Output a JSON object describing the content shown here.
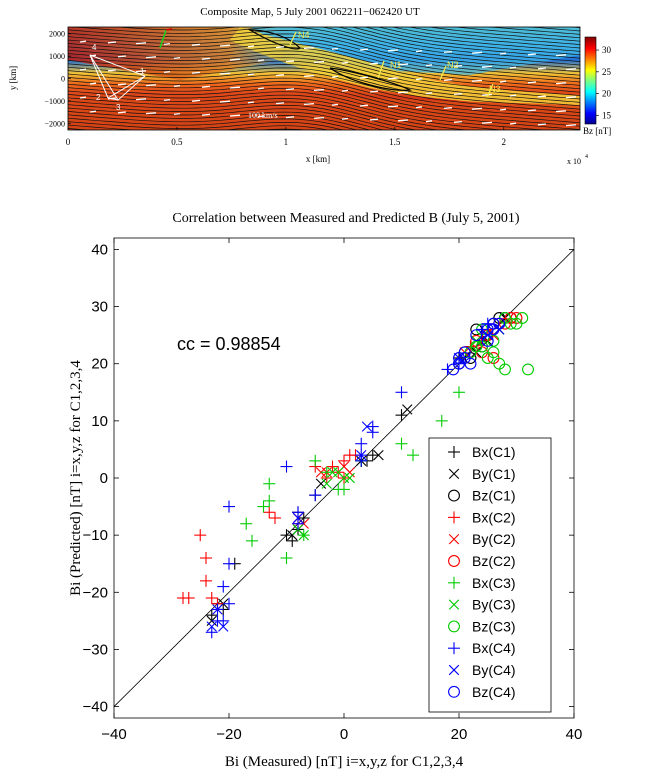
{
  "top_map": {
    "title": "Composite Map,  5 July 2001  062211−062420 UT",
    "ylabel": "y [km]",
    "xlabel": "x [km]",
    "x_exponent": "x 10",
    "x_exponent_power": "4",
    "x_ticks": [
      "0",
      "0.5",
      "1",
      "1.5",
      "2"
    ],
    "x_tick_values": [
      0,
      0.5,
      1,
      1.5,
      2
    ],
    "xlim": [
      0,
      2.35
    ],
    "y_ticks": [
      "2000",
      "1000",
      "0",
      "−1000",
      "−2000"
    ],
    "y_tick_values": [
      2000,
      1000,
      0,
      -1000,
      -2000
    ],
    "ylim": [
      -2300,
      2300
    ],
    "colorbar_label": "Bz  [nT]",
    "colorbar_ticks": [
      "30",
      "25",
      "20",
      "15"
    ],
    "colorbar_tick_values": [
      30,
      25,
      20,
      15
    ],
    "colorbar_range": [
      13,
      33
    ],
    "arrow_scale_label": "100 km/s",
    "labels": {
      "n1": "N1",
      "n2": "N2",
      "n3": "N3",
      "n4": "N4",
      "c1": "1",
      "c2": "2",
      "c3": "3",
      "c4": "4"
    },
    "colors": {
      "label": "#f2e94e",
      "arrows": "#ffffff",
      "green_arrow": "#22cc22",
      "red_arrow": "#cc0000"
    }
  },
  "chart_data": {
    "type": "scatter",
    "title": "Correlation between Measured and Predicted B (July 5, 2001)",
    "xlabel": "Bi (Measured) [nT] i=x,y,z for C1,2,3,4",
    "ylabel": "Bi (Predicted) [nT] i=x,y,z for C1,2,3,4",
    "xlim": [
      -40,
      40
    ],
    "ylim": [
      -42,
      42
    ],
    "x_ticks": [
      "−40",
      "−20",
      "0",
      "20",
      "40"
    ],
    "x_tick_values": [
      -40,
      -20,
      0,
      20,
      40
    ],
    "y_ticks": [
      "40",
      "30",
      "20",
      "10",
      "0",
      "−10",
      "−20",
      "−30",
      "−40"
    ],
    "y_tick_values": [
      40,
      30,
      20,
      10,
      0,
      -10,
      -20,
      -30,
      -40
    ],
    "annotation": "cc = 0.98854",
    "reference_line": [
      [
        -40,
        -40
      ],
      [
        40,
        40
      ]
    ],
    "legend_placement": "lower-right",
    "series": [
      {
        "name": "Bx(C1)",
        "marker": "plus",
        "color": "#000000",
        "points": [
          [
            -22,
            -22
          ],
          [
            -23,
            -24
          ],
          [
            -21,
            -23
          ],
          [
            -19,
            -15
          ],
          [
            -8,
            -6
          ],
          [
            -8,
            -9
          ],
          [
            -9,
            -11
          ],
          [
            -10,
            -10
          ],
          [
            -7,
            -7
          ],
          [
            3,
            3
          ],
          [
            4,
            3
          ],
          [
            5,
            4
          ],
          [
            -5,
            -3
          ],
          [
            10,
            11
          ],
          [
            22,
            23
          ],
          [
            24,
            24
          ],
          [
            20,
            21
          ]
        ]
      },
      {
        "name": "By(C1)",
        "marker": "x",
        "color": "#000000",
        "points": [
          [
            -23,
            -25
          ],
          [
            -21,
            -22
          ],
          [
            -9,
            -10
          ],
          [
            -8,
            -9
          ],
          [
            -4,
            -1
          ],
          [
            3,
            3
          ],
          [
            6,
            4
          ],
          [
            11,
            12
          ],
          [
            23,
            22
          ],
          [
            25,
            24
          ],
          [
            27,
            26
          ],
          [
            28,
            28
          ]
        ]
      },
      {
        "name": "Bz(C1)",
        "marker": "circle",
        "color": "#000000",
        "points": [
          [
            20,
            20
          ],
          [
            22,
            21
          ],
          [
            24,
            23
          ],
          [
            25,
            25
          ],
          [
            26,
            27
          ],
          [
            27,
            28
          ],
          [
            28,
            28
          ],
          [
            29,
            28
          ],
          [
            23,
            26
          ],
          [
            21,
            22
          ]
        ]
      },
      {
        "name": "Bx(C2)",
        "marker": "plus",
        "color": "#ff0000",
        "points": [
          [
            -28,
            -21
          ],
          [
            -27,
            -21
          ],
          [
            -25,
            -10
          ],
          [
            -24,
            -14
          ],
          [
            -24,
            -18
          ],
          [
            -23,
            -21
          ],
          [
            -22,
            -22
          ],
          [
            -13,
            -6
          ],
          [
            -12,
            -7
          ],
          [
            -8,
            -8
          ],
          [
            -5,
            2
          ],
          [
            -3,
            0
          ],
          [
            -2,
            2
          ],
          [
            0,
            0
          ],
          [
            0,
            3
          ],
          [
            1,
            4
          ],
          [
            2,
            4
          ],
          [
            -1,
            1
          ],
          [
            22,
            23
          ],
          [
            25,
            26
          ]
        ]
      },
      {
        "name": "By(C2)",
        "marker": "x",
        "color": "#ff0000",
        "points": [
          [
            -7,
            -8
          ],
          [
            -8,
            -7
          ],
          [
            -4,
            1
          ],
          [
            -3,
            1
          ],
          [
            0,
            2
          ],
          [
            1,
            1
          ],
          [
            23,
            24
          ],
          [
            26,
            25
          ],
          [
            21,
            22
          ]
        ]
      },
      {
        "name": "Bz(C2)",
        "marker": "circle",
        "color": "#ff0000",
        "points": [
          [
            23,
            24
          ],
          [
            25,
            25
          ],
          [
            27,
            27
          ],
          [
            28,
            27
          ],
          [
            29,
            28
          ],
          [
            26,
            21
          ],
          [
            30,
            28
          ],
          [
            24,
            22
          ]
        ]
      },
      {
        "name": "Bx(C3)",
        "marker": "plus",
        "color": "#00cc00",
        "points": [
          [
            -17,
            -8
          ],
          [
            -16,
            -11
          ],
          [
            -14,
            -5
          ],
          [
            -13,
            -1
          ],
          [
            -13,
            -4
          ],
          [
            -10,
            -14
          ],
          [
            -7,
            -10
          ],
          [
            -3,
            1
          ],
          [
            -1,
            -2
          ],
          [
            0,
            -2
          ],
          [
            3,
            3
          ],
          [
            10,
            6
          ],
          [
            12,
            4
          ],
          [
            17,
            10
          ],
          [
            20,
            15
          ],
          [
            -5,
            3
          ]
        ]
      },
      {
        "name": "By(C3)",
        "marker": "x",
        "color": "#00cc00",
        "points": [
          [
            -8,
            -9
          ],
          [
            -7,
            -10
          ],
          [
            -3,
            -1
          ],
          [
            -2,
            1
          ],
          [
            -1,
            1
          ],
          [
            0,
            0
          ],
          [
            1,
            0
          ],
          [
            23,
            24
          ],
          [
            25,
            25
          ],
          [
            27,
            26
          ]
        ]
      },
      {
        "name": "Bz(C3)",
        "marker": "circle",
        "color": "#00cc00",
        "points": [
          [
            22,
            22
          ],
          [
            24,
            23
          ],
          [
            26,
            24
          ],
          [
            27,
            20
          ],
          [
            28,
            19
          ],
          [
            30,
            27
          ],
          [
            32,
            19
          ],
          [
            28,
            28
          ],
          [
            29,
            27
          ],
          [
            31,
            28
          ],
          [
            25,
            21
          ],
          [
            23,
            23
          ],
          [
            26,
            22
          ],
          [
            24,
            26
          ]
        ]
      },
      {
        "name": "Bx(C4)",
        "marker": "plus",
        "color": "#0000ff",
        "points": [
          [
            -23,
            -27
          ],
          [
            -22,
            -25
          ],
          [
            -21,
            -25
          ],
          [
            -20,
            -22
          ],
          [
            -22,
            -23
          ],
          [
            -21,
            -19
          ],
          [
            -20,
            -5
          ],
          [
            -20,
            -15
          ],
          [
            -10,
            2
          ],
          [
            -8,
            -6
          ],
          [
            -8,
            -8
          ],
          [
            -5,
            -3
          ],
          [
            3,
            3
          ],
          [
            3,
            6
          ],
          [
            3,
            4
          ],
          [
            5,
            9
          ],
          [
            5,
            8
          ],
          [
            10,
            15
          ],
          [
            18,
            19
          ],
          [
            20,
            20
          ],
          [
            24,
            26
          ],
          [
            25,
            27
          ]
        ]
      },
      {
        "name": "By(C4)",
        "marker": "x",
        "color": "#0000ff",
        "points": [
          [
            -23,
            -26
          ],
          [
            -22,
            -23
          ],
          [
            -21,
            -26
          ],
          [
            -8,
            -7
          ],
          [
            3,
            4
          ],
          [
            4,
            9
          ],
          [
            25,
            25
          ],
          [
            27,
            26
          ],
          [
            20,
            21
          ]
        ]
      },
      {
        "name": "Bz(C4)",
        "marker": "circle",
        "color": "#0000ff",
        "points": [
          [
            19,
            19
          ],
          [
            20,
            20
          ],
          [
            20,
            21
          ],
          [
            21,
            21
          ],
          [
            22,
            20
          ],
          [
            21,
            22
          ],
          [
            23,
            25
          ],
          [
            25,
            26
          ],
          [
            26,
            27
          ],
          [
            27,
            27
          ],
          [
            25,
            24
          ],
          [
            26,
            26
          ]
        ]
      }
    ]
  }
}
